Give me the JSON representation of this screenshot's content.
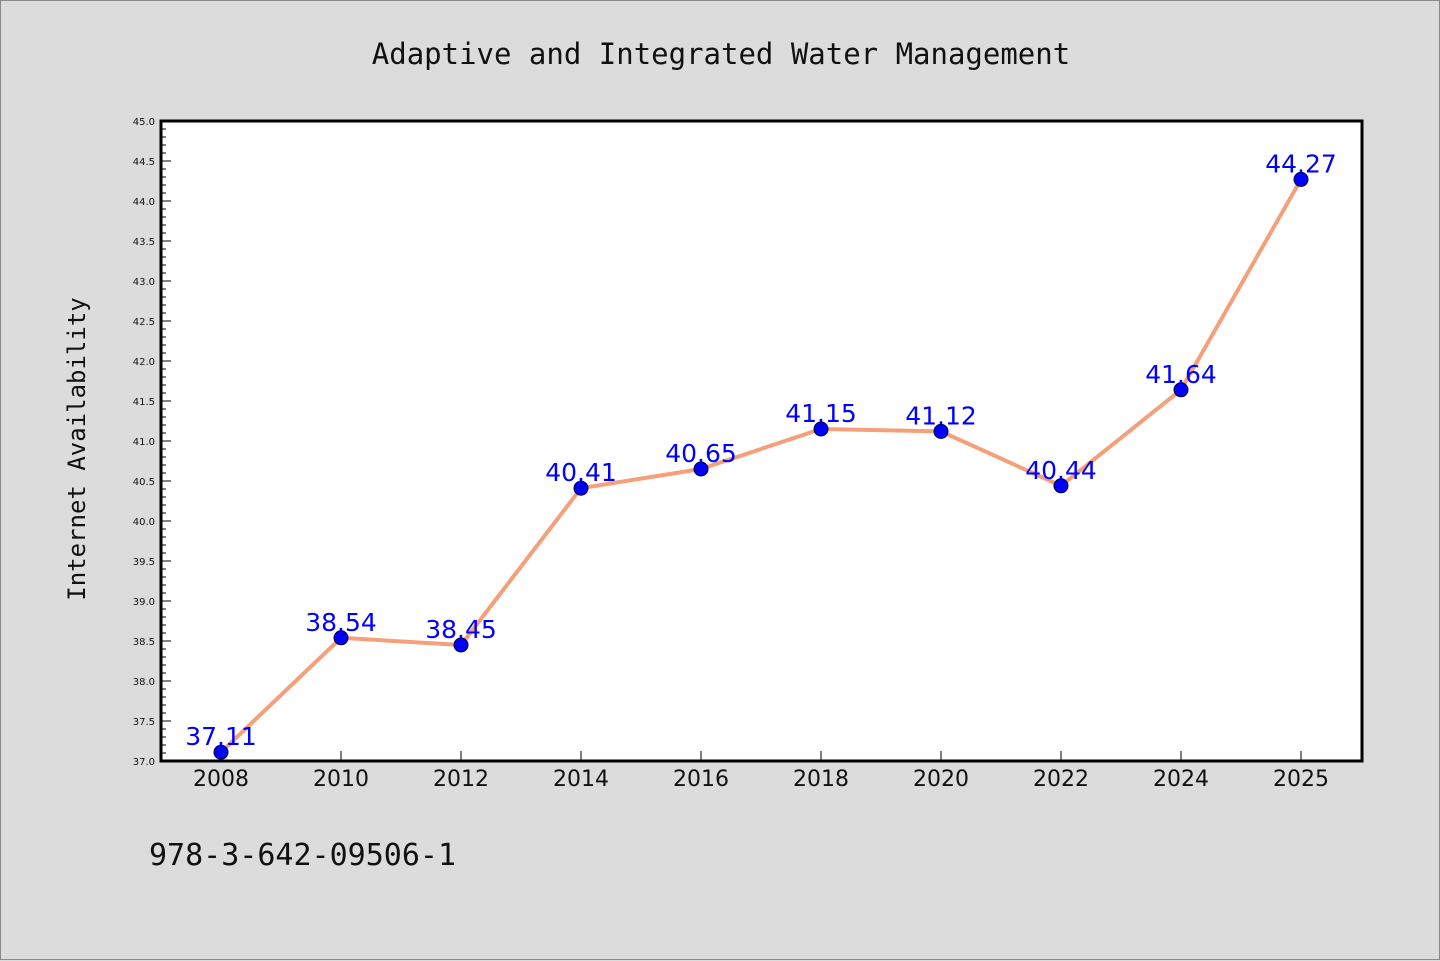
{
  "chart_data": {
    "type": "line",
    "title": "Adaptive and Integrated Water Management",
    "xlabel": "",
    "ylabel": "Internet Availability",
    "categories": [
      "2008",
      "2010",
      "2012",
      "2014",
      "2016",
      "2018",
      "2020",
      "2022",
      "2024",
      "2025"
    ],
    "series": [
      {
        "values": [
          37.11,
          38.54,
          38.45,
          40.41,
          40.65,
          41.15,
          41.12,
          40.44,
          41.64,
          44.27
        ],
        "data_labels": [
          "37.11",
          "38.54",
          "38.45",
          "40.41",
          "40.65",
          "41.15",
          "41.12",
          "40.44",
          "41.64",
          "44.27"
        ],
        "line_color": "#f4a07a",
        "marker_color": "#0000ff",
        "label_color": "#0000ff"
      }
    ],
    "ylim": [
      37.0,
      45.0
    ],
    "yticks": [
      "37.0",
      "37.5",
      "38.0",
      "38.5",
      "39.0",
      "39.5",
      "40.0",
      "40.5",
      "41.0",
      "41.5",
      "42.0",
      "42.5",
      "43.0",
      "43.5",
      "44.0",
      "44.5",
      "45.0"
    ],
    "grid": false,
    "legend": "none"
  },
  "footer_text": "978-3-642-09506-1",
  "colors": {
    "background": "#dcdcdc",
    "plot_background": "#ffffff"
  }
}
